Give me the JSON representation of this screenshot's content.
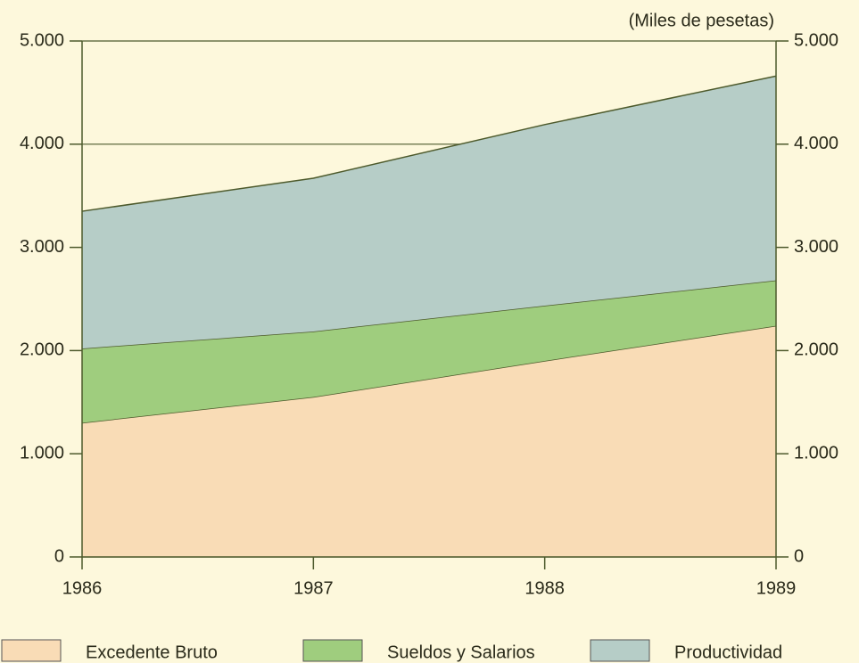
{
  "chart_data": {
    "type": "stacked_area",
    "annotation": "(Miles de pesetas)",
    "categories": [
      "1986",
      "1987",
      "1988",
      "1989"
    ],
    "series": [
      {
        "name": "Excedente Bruto",
        "color": "#f9dcb6",
        "values": [
          1300,
          1550,
          1900,
          2240
        ]
      },
      {
        "name": "Sueldos y Salarios",
        "color": "#9fcd7e",
        "values": [
          720,
          635,
          535,
          440
        ]
      },
      {
        "name": "Productividad",
        "color": "#b6cdc7",
        "values": [
          1330,
          1485,
          1755,
          1980
        ]
      }
    ],
    "ylim": [
      0,
      5000
    ],
    "yticks": [
      0,
      {
        "value": 1000,
        "label": "1.000"
      },
      {
        "value": 2000,
        "label": "2.000"
      },
      {
        "value": 3000,
        "label": "3.000"
      },
      {
        "value": 4000,
        "label": "4.000"
      },
      {
        "value": 5000,
        "label": "5.000"
      }
    ],
    "grid": true
  }
}
